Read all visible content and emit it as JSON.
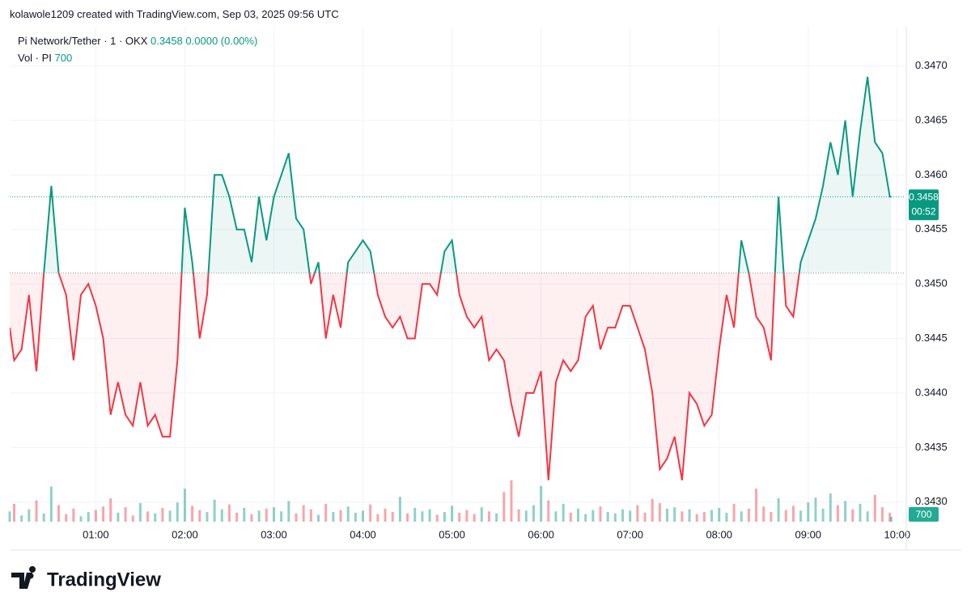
{
  "header": {
    "attribution": "kolawole1209 created with TradingView.com, Sep 03, 2025 09:56 UTC",
    "symbol": "Pi Network/Tether · 1 · OKX",
    "change": "0.0000 (0.00%)",
    "volume_label": "Vol · PI"
  },
  "footer": {
    "brand": "TradingView"
  },
  "chart_data": {
    "type": "baseline",
    "x": [
      "00:02",
      "00:05",
      "00:10",
      "00:15",
      "00:20",
      "00:25",
      "00:30",
      "00:35",
      "00:40",
      "00:45",
      "00:50",
      "00:55",
      "01:00",
      "01:05",
      "01:10",
      "01:15",
      "01:20",
      "01:25",
      "01:30",
      "01:35",
      "01:40",
      "01:45",
      "01:50",
      "01:55",
      "02:00",
      "02:05",
      "02:10",
      "02:15",
      "02:20",
      "02:25",
      "02:30",
      "02:35",
      "02:40",
      "02:45",
      "02:50",
      "02:55",
      "03:00",
      "03:05",
      "03:10",
      "03:15",
      "03:20",
      "03:25",
      "03:30",
      "03:35",
      "03:40",
      "03:45",
      "03:50",
      "03:55",
      "04:00",
      "04:05",
      "04:10",
      "04:15",
      "04:20",
      "04:25",
      "04:30",
      "04:35",
      "04:40",
      "04:45",
      "04:50",
      "04:55",
      "05:00",
      "05:05",
      "05:10",
      "05:15",
      "05:20",
      "05:25",
      "05:30",
      "05:35",
      "05:40",
      "05:45",
      "05:50",
      "05:55",
      "06:00",
      "06:05",
      "06:10",
      "06:15",
      "06:20",
      "06:25",
      "06:30",
      "06:35",
      "06:40",
      "06:45",
      "06:50",
      "06:55",
      "07:00",
      "07:05",
      "07:10",
      "07:15",
      "07:20",
      "07:25",
      "07:30",
      "07:35",
      "07:40",
      "07:45",
      "07:50",
      "07:55",
      "08:00",
      "08:05",
      "08:10",
      "08:15",
      "08:20",
      "08:25",
      "08:30",
      "08:35",
      "08:40",
      "08:45",
      "08:50",
      "08:55",
      "09:00",
      "09:05",
      "09:10",
      "09:15",
      "09:20",
      "09:25",
      "09:30",
      "09:35",
      "09:40",
      "09:45",
      "09:50",
      "09:55",
      "09:56"
    ],
    "values": [
      0.3446,
      0.3443,
      0.3444,
      0.3449,
      0.3442,
      0.3451,
      0.3459,
      0.3451,
      0.3449,
      0.3443,
      0.3449,
      0.345,
      0.3448,
      0.3445,
      0.3438,
      0.3441,
      0.3438,
      0.3437,
      0.3441,
      0.3437,
      0.3438,
      0.3436,
      0.3436,
      0.3443,
      0.3457,
      0.3452,
      0.3445,
      0.3449,
      0.346,
      0.346,
      0.3458,
      0.3455,
      0.3455,
      0.3452,
      0.3458,
      0.3454,
      0.3458,
      0.346,
      0.3462,
      0.3456,
      0.3455,
      0.345,
      0.3452,
      0.3445,
      0.3449,
      0.3446,
      0.3452,
      0.3453,
      0.3454,
      0.3453,
      0.3449,
      0.3447,
      0.3446,
      0.3447,
      0.3445,
      0.3445,
      0.345,
      0.345,
      0.3449,
      0.3453,
      0.3454,
      0.3449,
      0.3447,
      0.3446,
      0.3447,
      0.3443,
      0.3444,
      0.3443,
      0.3439,
      0.3436,
      0.344,
      0.344,
      0.3442,
      0.3432,
      0.3441,
      0.3443,
      0.3442,
      0.3443,
      0.3447,
      0.3448,
      0.3444,
      0.3446,
      0.3446,
      0.3448,
      0.3448,
      0.3446,
      0.3444,
      0.344,
      0.3433,
      0.3434,
      0.3436,
      0.3432,
      0.344,
      0.3439,
      0.3437,
      0.3438,
      0.3444,
      0.3449,
      0.3446,
      0.3454,
      0.3451,
      0.3447,
      0.3446,
      0.3443,
      0.3458,
      0.3448,
      0.3447,
      0.3452,
      0.3454,
      0.3456,
      0.3459,
      0.3463,
      0.346,
      0.3465,
      0.3458,
      0.3464,
      0.3469,
      0.3463,
      0.3462,
      0.3458,
      0.3458
    ],
    "volume": [
      1500,
      2600,
      900,
      1800,
      3100,
      1200,
      5100,
      2400,
      1100,
      1900,
      800,
      1400,
      1700,
      2200,
      3400,
      1300,
      2100,
      900,
      2700,
      1500,
      1200,
      2000,
      1600,
      2800,
      4800,
      2300,
      1700,
      1400,
      3200,
      1800,
      2500,
      1300,
      2000,
      1100,
      1600,
      1900,
      2100,
      1500,
      3000,
      1200,
      2400,
      1800,
      1000,
      2600,
      1400,
      1700,
      2200,
      1300,
      1600,
      2500,
      1100,
      1900,
      1400,
      3600,
      1200,
      2000,
      1500,
      1800,
      1000,
      1400,
      2300,
      1300,
      1700,
      1100,
      2100,
      1500,
      1200,
      4300,
      6000,
      1800,
      1600,
      2400,
      5200,
      3100,
      1500,
      2600,
      1300,
      1900,
      1100,
      1700,
      2200,
      1400,
      1200,
      1800,
      1600,
      2400,
      1300,
      3300,
      2700,
      1900,
      2100,
      1500,
      1800,
      1100,
      1400,
      1700,
      2000,
      1300,
      2600,
      1500,
      1900,
      4800,
      2200,
      1400,
      3400,
      1700,
      2300,
      1600,
      2800,
      3500,
      1900,
      4100,
      2400,
      3000,
      1800,
      2600,
      1500,
      3900,
      2100,
      1300,
      700
    ],
    "baseline": 0.3451,
    "countdown": "00:52",
    "up_color": "#089981",
    "down_color": "#f23645",
    "xlim": [
      "00:02",
      "10:05"
    ],
    "xticks": [
      "01:00",
      "02:00",
      "03:00",
      "04:00",
      "05:00",
      "06:00",
      "07:00",
      "08:00",
      "09:00",
      "10:00"
    ],
    "ylim": [
      0.34282,
      0.34736
    ],
    "yticks": [
      {
        "value": 0.343,
        "label": "0.3430"
      },
      {
        "value": 0.3435,
        "label": "0.3435"
      },
      {
        "value": 0.344,
        "label": "0.3440"
      },
      {
        "value": 0.3445,
        "label": "0.3445"
      },
      {
        "value": 0.345,
        "label": "0.3450"
      },
      {
        "value": 0.3455,
        "label": "0.3455"
      },
      {
        "value": 0.346,
        "label": "0.3460"
      },
      {
        "value": 0.3465,
        "label": "0.3465"
      },
      {
        "value": 0.347,
        "label": "0.3470"
      }
    ],
    "vlim": [
      0,
      10000
    ],
    "grid": true
  }
}
